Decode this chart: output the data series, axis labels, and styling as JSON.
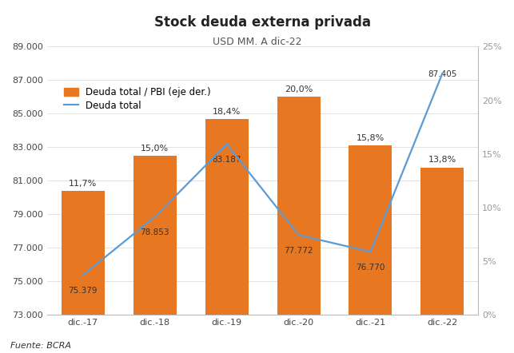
{
  "title": "Stock deuda externa privada",
  "subtitle": "USD MM. A dic-22",
  "source": "Fuente: BCRA",
  "categories": [
    "dic.-17",
    "dic.-18",
    "dic.-19",
    "dic.-20",
    "dic.-21",
    "dic.-22"
  ],
  "bar_vals": [
    80400,
    82500,
    84700,
    86000,
    83100,
    81800
  ],
  "line_values": [
    75379,
    78853,
    83187,
    77772,
    76770,
    87405
  ],
  "pct_values": [
    11.7,
    15.0,
    18.4,
    20.0,
    15.8,
    13.8
  ],
  "bar_labels": [
    "75.379",
    "78.853",
    "83.187",
    "77.772",
    "76.770",
    "87.405"
  ],
  "bar_color": "#E87722",
  "line_color": "#5B9BD5",
  "ylim_left": [
    73000,
    89000
  ],
  "yticks_left": [
    73000,
    75000,
    77000,
    79000,
    81000,
    83000,
    85000,
    87000,
    89000
  ],
  "ylim_right": [
    0,
    0.25
  ],
  "yticks_right": [
    0.0,
    0.05,
    0.1,
    0.15,
    0.2,
    0.25
  ],
  "ytick_labels_left": [
    "73.000",
    "75.000",
    "77.000",
    "79.000",
    "81.000",
    "83.000",
    "85.000",
    "87.000",
    "89.000"
  ],
  "ytick_labels_right": [
    "0%",
    "5%",
    "10%",
    "15%",
    "20%",
    "25%"
  ],
  "legend_bar": "Deuda total / PBI (eje der.)",
  "legend_line": "Deuda total",
  "background_color": "#FFFFFF",
  "title_fontsize": 12,
  "subtitle_fontsize": 9,
  "tick_fontsize": 8,
  "source_fontsize": 8
}
